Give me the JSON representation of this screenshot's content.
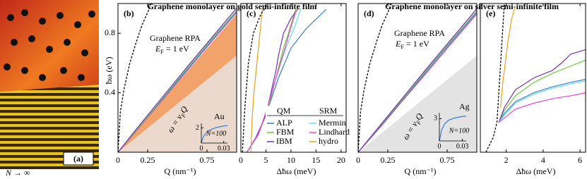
{
  "panel_a": {
    "label": "(a)",
    "caption": "N → ∞"
  },
  "chart_data": [
    {
      "type": "line",
      "panel": "(b)",
      "title": "Graphene monolayer on gold semi-infinite film",
      "xlabel": "Q (nm⁻¹)",
      "ylabel": "ħω (eV)",
      "xlim": [
        0,
        1
      ],
      "ylim": [
        0,
        1
      ],
      "xticks": [
        0,
        0.25,
        0.75
      ],
      "yticks": [
        0.4,
        0.8
      ],
      "region_colors": [
        "#f2a36c",
        "#ead9cc"
      ],
      "fermi_energy": {
        "symbol": "E",
        "subscript": "F",
        "text": " = 1 eV"
      },
      "dispersion_label": {
        "symbol": "ω = v",
        "subscript": "F",
        "text": "Q"
      },
      "series": [
        {
          "name": "Lindhard",
          "color": "#ee44cc",
          "x": [
            0,
            0.2,
            0.4,
            0.6,
            0.8,
            1.0
          ],
          "values": [
            0,
            0.185,
            0.375,
            0.565,
            0.755,
            0.94
          ]
        },
        {
          "name": "ALP",
          "color": "#3a7bd5",
          "x": [
            0,
            0.2,
            0.4,
            0.6,
            0.8,
            1.0
          ],
          "values": [
            0,
            0.19,
            0.38,
            0.57,
            0.76,
            0.945
          ]
        },
        {
          "name": "FBM",
          "color": "#66cc33",
          "x": [
            0,
            0.2,
            0.4,
            0.6,
            0.8,
            1.0
          ],
          "values": [
            0,
            0.19,
            0.385,
            0.58,
            0.77,
            0.955
          ]
        },
        {
          "name": "IBM",
          "color": "#7a2cbf",
          "x": [
            0,
            0.2,
            0.4,
            0.6,
            0.8,
            1.0
          ],
          "values": [
            0,
            0.2,
            0.395,
            0.59,
            0.78,
            0.97
          ]
        },
        {
          "name": "Graphene RPA",
          "color": "#000000",
          "dashed": true,
          "x": [
            0,
            0.02,
            0.05,
            0.1,
            0.15,
            0.2,
            0.25,
            0.28
          ],
          "values": [
            0,
            0.27,
            0.42,
            0.6,
            0.73,
            0.85,
            0.94,
            1.0
          ]
        }
      ],
      "inset": {
        "label": "Au",
        "size": "N=100",
        "color": "#3a7bd5",
        "xlim": [
          0,
          0.035
        ],
        "ylim": [
          0,
          2.6
        ],
        "xticks": [
          0,
          0.03
        ],
        "yticks": [
          2
        ],
        "x": [
          0,
          0.003,
          0.007,
          0.012,
          0.02,
          0.03,
          0.035
        ],
        "values": [
          0,
          0.9,
          1.4,
          1.75,
          2.05,
          2.25,
          2.3
        ]
      }
    },
    {
      "type": "line",
      "panel": "(c)",
      "xlabel": "Δħω (meV)",
      "xlim": [
        0,
        21
      ],
      "ylim": [
        0,
        1
      ],
      "xticks": [
        0,
        5,
        10,
        15,
        20
      ],
      "legend_headers": [
        "QM",
        "SRM"
      ],
      "series": [
        {
          "name": "ALP",
          "color": "#3a7bd5",
          "x": [
            1.2,
            3.5,
            5.5,
            7.5,
            10,
            13,
            17
          ],
          "values": [
            0,
            0.12,
            0.3,
            0.5,
            0.7,
            0.83,
            0.96
          ]
        },
        {
          "name": "FBM",
          "color": "#66cc33",
          "x": [
            1.2,
            3.5,
            5.5,
            7,
            8.5,
            9.5,
            11
          ],
          "values": [
            0,
            0.12,
            0.3,
            0.5,
            0.7,
            0.8,
            0.97
          ]
        },
        {
          "name": "IBM",
          "color": "#7a2cbf",
          "x": [
            1.2,
            3,
            5,
            6,
            7,
            7.5,
            8.5,
            10,
            11.5
          ],
          "values": [
            0,
            0.1,
            0.25,
            0.4,
            0.55,
            0.65,
            0.8,
            0.9,
            0.97
          ]
        },
        {
          "name": "Mermin",
          "color": "#66ddee",
          "x": [
            1.2,
            3.5,
            5.3,
            7,
            9,
            10.8,
            12
          ],
          "values": [
            0,
            0.12,
            0.3,
            0.5,
            0.7,
            0.85,
            0.97
          ]
        },
        {
          "name": "Lindhard",
          "color": "#ee44cc",
          "x": [
            1.2,
            3.5,
            5.3,
            7,
            8.8,
            9.8,
            11
          ],
          "values": [
            0,
            0.12,
            0.3,
            0.5,
            0.7,
            0.82,
            0.95
          ]
        },
        {
          "name": "hydro",
          "color": "#e8a317",
          "x": [
            2,
            2.2,
            2.6,
            3.2,
            3.8,
            4.3
          ],
          "values": [
            0,
            0.2,
            0.4,
            0.6,
            0.8,
            0.97
          ]
        },
        {
          "color": "#000000",
          "dashed": true,
          "x": [
            0.3,
            0.8,
            1.5,
            2.5,
            4,
            5.5
          ],
          "values": [
            0,
            0.3,
            0.6,
            0.8,
            0.93,
            1.0
          ]
        }
      ]
    },
    {
      "type": "line",
      "panel": "(d)",
      "title": "Graphene monolayer on silver semi-infinite film",
      "xlabel": "Q (nm⁻¹)",
      "xlim": [
        0,
        1
      ],
      "ylim": [
        0,
        1
      ],
      "xticks": [
        0,
        0.25,
        0.75
      ],
      "region_colors": [
        null,
        "#e3e3e3"
      ],
      "fermi_energy": {
        "symbol": "E",
        "subscript": "F",
        "text": " = 1 eV"
      },
      "dispersion_label": {
        "symbol": "ω = v",
        "subscript": "F",
        "text": "Q"
      },
      "series": [
        {
          "name": "Lindhard",
          "color": "#ee44cc",
          "x": [
            0,
            0.2,
            0.4,
            0.6,
            0.8,
            1.0
          ],
          "values": [
            0,
            0.18,
            0.37,
            0.555,
            0.745,
            0.93
          ]
        },
        {
          "name": "ALP",
          "color": "#3a7bd5",
          "x": [
            0,
            0.2,
            0.4,
            0.6,
            0.8,
            1.0
          ],
          "values": [
            0,
            0.185,
            0.375,
            0.565,
            0.755,
            0.94
          ]
        },
        {
          "name": "FBM",
          "color": "#66cc33",
          "x": [
            0,
            0.2,
            0.4,
            0.6,
            0.8,
            1.0
          ],
          "values": [
            0,
            0.19,
            0.38,
            0.575,
            0.765,
            0.95
          ]
        },
        {
          "name": "IBM",
          "color": "#7a2cbf",
          "x": [
            0,
            0.2,
            0.4,
            0.6,
            0.8,
            1.0
          ],
          "values": [
            0,
            0.195,
            0.39,
            0.585,
            0.775,
            0.965
          ]
        },
        {
          "name": "Graphene RPA",
          "color": "#000000",
          "dashed": true,
          "x": [
            0,
            0.02,
            0.05,
            0.1,
            0.15,
            0.2,
            0.25,
            0.28
          ],
          "values": [
            0,
            0.27,
            0.42,
            0.6,
            0.73,
            0.85,
            0.94,
            1.0
          ]
        }
      ],
      "inset": {
        "label": "Ag",
        "size": "N=100",
        "color": "#3a7bd5",
        "xlim": [
          0,
          0.035
        ],
        "ylim": [
          0,
          3.8
        ],
        "xticks": [
          0,
          0.03
        ],
        "yticks": [
          3
        ],
        "x": [
          0,
          0.003,
          0.007,
          0.012,
          0.02,
          0.03,
          0.035
        ],
        "values": [
          0,
          1.5,
          2.3,
          2.8,
          3.1,
          3.3,
          3.35
        ]
      }
    },
    {
      "type": "line",
      "panel": "(e)",
      "xlabel": "Δħω (meV)",
      "xlim": [
        0.6,
        6.3
      ],
      "ylim": [
        0,
        1
      ],
      "xticks": [
        2,
        4,
        6
      ],
      "series": [
        {
          "name": "ALP",
          "color": "#3a7bd5",
          "x": [
            1.6,
            1.9,
            2.5,
            3.5,
            4.5,
            5.5,
            6.3
          ],
          "values": [
            0.2,
            0.26,
            0.34,
            0.4,
            0.44,
            0.47,
            0.49
          ]
        },
        {
          "name": "FBM",
          "color": "#66cc33",
          "x": [
            1.6,
            1.9,
            2.5,
            3.5,
            4.5,
            5.5,
            6.3
          ],
          "values": [
            0.2,
            0.28,
            0.38,
            0.47,
            0.53,
            0.58,
            0.62
          ]
        },
        {
          "name": "IBM",
          "color": "#7a2cbf",
          "x": [
            1.6,
            1.9,
            2.5,
            3.5,
            4.5,
            5.0,
            5.5,
            6.3
          ],
          "values": [
            0.2,
            0.3,
            0.42,
            0.5,
            0.55,
            0.6,
            0.66,
            0.69
          ]
        },
        {
          "name": "Mermin",
          "color": "#66ddee",
          "x": [
            1.6,
            1.9,
            2.5,
            3.5,
            4.5,
            5.5,
            6.3
          ],
          "values": [
            0.2,
            0.25,
            0.33,
            0.39,
            0.43,
            0.46,
            0.48
          ]
        },
        {
          "name": "Lindhard",
          "color": "#ee44cc",
          "x": [
            1.6,
            1.9,
            2.5,
            3.5,
            4.5,
            5.5,
            6.3
          ],
          "values": [
            0.2,
            0.23,
            0.29,
            0.33,
            0.36,
            0.38,
            0.4
          ]
        },
        {
          "name": "hydro",
          "color": "#e8a317",
          "x": [
            1.7,
            1.8,
            1.95,
            2.1,
            2.3,
            2.5
          ],
          "values": [
            0.3,
            0.45,
            0.6,
            0.75,
            0.9,
            0.98
          ]
        },
        {
          "color": "#000000",
          "dashed": true,
          "x": [
            0.9,
            1.3,
            1.5,
            1.6,
            1.7,
            1.8,
            1.9
          ],
          "values": [
            0,
            0.1,
            0.2,
            0.4,
            0.6,
            0.8,
            1.0
          ]
        }
      ]
    }
  ]
}
